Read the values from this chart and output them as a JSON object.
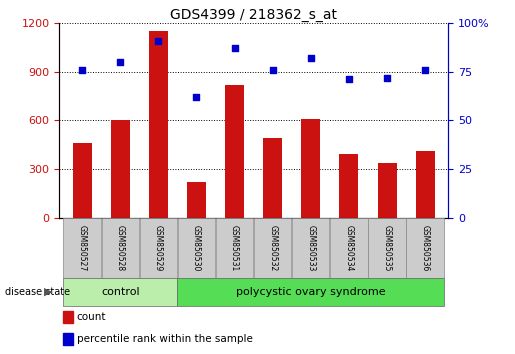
{
  "title": "GDS4399 / 218362_s_at",
  "samples": [
    "GSM850527",
    "GSM850528",
    "GSM850529",
    "GSM850530",
    "GSM850531",
    "GSM850532",
    "GSM850533",
    "GSM850534",
    "GSM850535",
    "GSM850536"
  ],
  "counts": [
    460,
    600,
    1150,
    220,
    820,
    490,
    610,
    390,
    340,
    410
  ],
  "percentiles": [
    76,
    80,
    91,
    62,
    87,
    76,
    82,
    71,
    72,
    76
  ],
  "ylim_left": [
    0,
    1200
  ],
  "ylim_right": [
    0,
    100
  ],
  "yticks_left": [
    0,
    300,
    600,
    900,
    1200
  ],
  "yticks_right": [
    0,
    25,
    50,
    75,
    100
  ],
  "bar_color": "#cc1111",
  "dot_color": "#0000cc",
  "grid_color": "#000000",
  "n_control": 3,
  "control_label": "control",
  "pcos_label": "polycystic ovary syndrome",
  "control_color": "#bbeeaa",
  "pcos_color": "#55dd55",
  "disease_label": "disease state",
  "legend_count": "count",
  "legend_pct": "percentile rank within the sample",
  "left_axis_color": "#cc1111",
  "right_axis_color": "#0000cc",
  "tick_label_bg": "#cccccc",
  "bar_width": 0.5
}
